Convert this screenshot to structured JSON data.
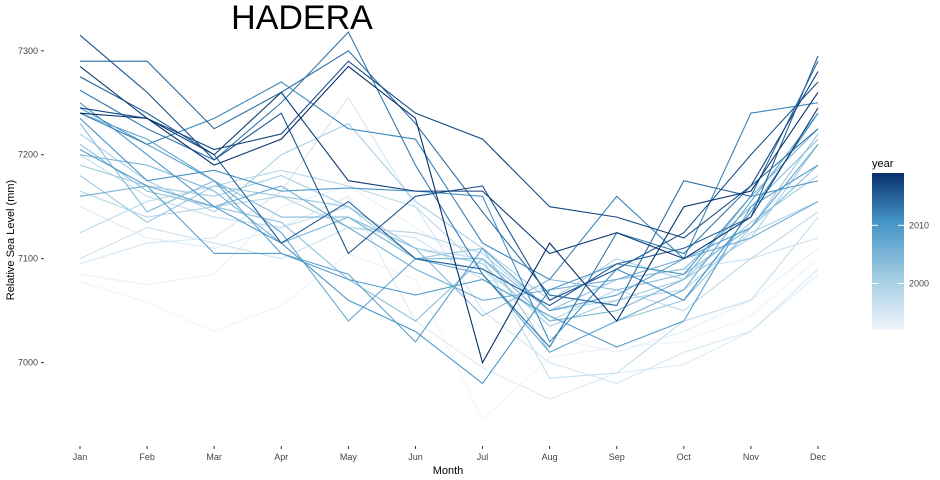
{
  "chart_data": {
    "type": "line",
    "title": "HADERA",
    "xlabel": "Month",
    "ylabel": "Relative Sea Level (mm)",
    "categories": [
      "Jan",
      "Feb",
      "Mar",
      "Apr",
      "May",
      "Jun",
      "Jul",
      "Aug",
      "Sep",
      "Oct",
      "Nov",
      "Dec"
    ],
    "ylim": [
      6940,
      7320
    ],
    "yticks": [
      7000,
      7100,
      7200,
      7300
    ],
    "legend": {
      "title": "year",
      "placement": "right",
      "range": [
        1992,
        2019
      ],
      "ticks": [
        2000,
        2010
      ],
      "colors": [
        "#eef4fb",
        "#08306b"
      ]
    },
    "grid": false,
    "series": [
      {
        "year": 1992,
        "values": [
          7078,
          7058,
          7030,
          7055,
          7105,
          7080,
          6945,
          7005,
          7015,
          7020,
          7045,
          7100
        ]
      },
      {
        "year": 1993,
        "values": [
          7085,
          7075,
          7085,
          7150,
          7170,
          7130,
          7090,
          7025,
          7010,
          7030,
          7060,
          7110
        ]
      },
      {
        "year": 1994,
        "values": [
          7150,
          7120,
          7110,
          7130,
          7160,
          7040,
          6995,
          6965,
          6990,
          6998,
          7030,
          7085
        ]
      },
      {
        "year": 1995,
        "values": [
          7095,
          7115,
          7120,
          7165,
          7255,
          7150,
          7050,
          7000,
          6980,
          7010,
          7030,
          7090
        ]
      },
      {
        "year": 1996,
        "values": [
          7100,
          7130,
          7115,
          7100,
          7130,
          7120,
          7080,
          7070,
          7080,
          7090,
          7100,
          7120
        ]
      },
      {
        "year": 1997,
        "values": [
          7200,
          7160,
          7140,
          7130,
          7150,
          7110,
          7100,
          6985,
          6990,
          7040,
          7060,
          7140
        ]
      },
      {
        "year": 1998,
        "values": [
          7125,
          7155,
          7170,
          7185,
          7170,
          7150,
          7090,
          7040,
          7070,
          7050,
          7100,
          7145
        ]
      },
      {
        "year": 1999,
        "values": [
          7165,
          7140,
          7150,
          7160,
          7130,
          7125,
          7105,
          7050,
          7060,
          7070,
          7125,
          7155
        ]
      },
      {
        "year": 2000,
        "values": [
          7220,
          7175,
          7145,
          7200,
          7230,
          7155,
          7110,
          7060,
          7100,
          7080,
          7120,
          7210
        ]
      },
      {
        "year": 2001,
        "values": [
          7190,
          7170,
          7160,
          7180,
          7150,
          7110,
          7095,
          7035,
          7060,
          7080,
          7135,
          7180
        ]
      },
      {
        "year": 2002,
        "values": [
          7180,
          7135,
          7170,
          7160,
          7150,
          7100,
          7110,
          7010,
          7040,
          7060,
          7130,
          7220
        ]
      },
      {
        "year": 2003,
        "values": [
          7210,
          7165,
          7150,
          7135,
          7080,
          7040,
          7100,
          7050,
          7080,
          7090,
          7150,
          7215
        ]
      },
      {
        "year": 2004,
        "values": [
          7230,
          7145,
          7175,
          7140,
          7140,
          7110,
          7045,
          7080,
          7070,
          7085,
          7130,
          7190
        ]
      },
      {
        "year": 2005,
        "values": [
          7200,
          7190,
          7165,
          7115,
          7140,
          7100,
          7100,
          7040,
          7050,
          7080,
          7160,
          7225
        ]
      },
      {
        "year": 2006,
        "values": [
          7160,
          7170,
          7150,
          7170,
          7130,
          7090,
          7060,
          7070,
          7080,
          7100,
          7120,
          7155
        ]
      },
      {
        "year": 2007,
        "values": [
          7240,
          7215,
          7175,
          7125,
          7040,
          7100,
          7085,
          7010,
          7040,
          7070,
          7155,
          7240
        ]
      },
      {
        "year": 2008,
        "values": [
          7245,
          7210,
          7175,
          7105,
          7085,
          7020,
          7110,
          7050,
          7065,
          7100,
          7130,
          7210
        ]
      },
      {
        "year": 2009,
        "values": [
          7205,
          7170,
          7105,
          7105,
          7080,
          7065,
          7080,
          7045,
          7015,
          7040,
          7150,
          7190
        ]
      },
      {
        "year": 2010,
        "values": [
          7250,
          7200,
          7150,
          7115,
          7060,
          7030,
          6980,
          7070,
          7095,
          7085,
          7160,
          7175
        ]
      },
      {
        "year": 2011,
        "values": [
          7235,
          7175,
          7185,
          7165,
          7168,
          7165,
          7160,
          7020,
          7090,
          7060,
          7145,
          7240
        ]
      },
      {
        "year": 2012,
        "values": [
          7240,
          7210,
          7235,
          7270,
          7225,
          7215,
          7115,
          7080,
          7160,
          7100,
          7240,
          7250
        ]
      },
      {
        "year": 2013,
        "values": [
          7262,
          7225,
          7195,
          7250,
          7318,
          7190,
          7085,
          7015,
          7125,
          7105,
          7170,
          7225
        ]
      },
      {
        "year": 2014,
        "values": [
          7290,
          7290,
          7225,
          7260,
          7300,
          7230,
          7145,
          7065,
          7055,
          7175,
          7160,
          7290
        ]
      },
      {
        "year": 2015,
        "values": [
          7275,
          7240,
          7200,
          7115,
          7155,
          7100,
          7090,
          7055,
          7095,
          7110,
          7140,
          7295
        ]
      },
      {
        "year": 2016,
        "values": [
          7315,
          7260,
          7195,
          7240,
          7105,
          7160,
          7170,
          7060,
          7090,
          7125,
          7200,
          7270
        ]
      },
      {
        "year": 2017,
        "values": [
          7245,
          7235,
          7205,
          7220,
          7290,
          7240,
          7215,
          7150,
          7140,
          7120,
          7170,
          7280
        ]
      },
      {
        "year": 2018,
        "values": [
          7285,
          7235,
          7200,
          7260,
          7175,
          7165,
          7165,
          7105,
          7125,
          7100,
          7140,
          7245
        ]
      },
      {
        "year": 2019,
        "values": [
          7240,
          7235,
          7190,
          7215,
          7285,
          7235,
          7000,
          7115,
          7040,
          7150,
          7165,
          7260
        ]
      }
    ]
  }
}
